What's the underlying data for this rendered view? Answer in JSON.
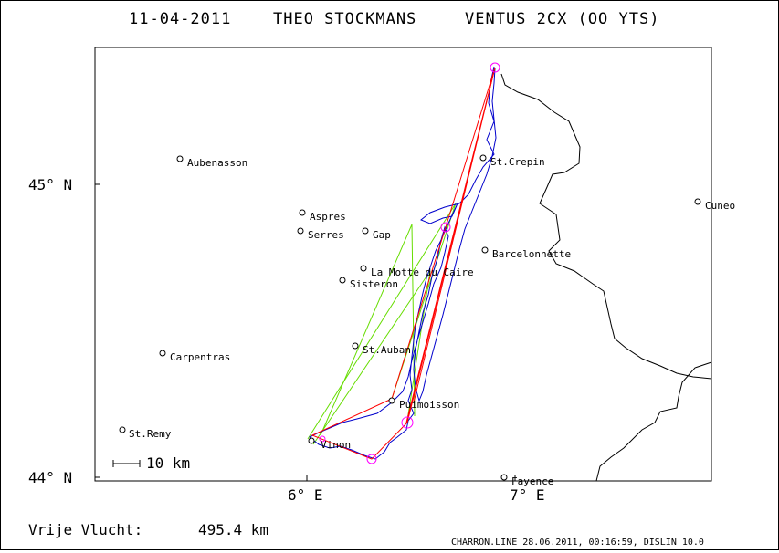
{
  "header": {
    "date": "11-04-2011",
    "pilot": "THEO STOCKMANS",
    "glider": "VENTUS 2CX (OO YTS)"
  },
  "axes": {
    "lat_labels": [
      "45° N",
      "44° N"
    ],
    "lon_labels": [
      "6° E",
      "7° E"
    ]
  },
  "scale_bar": {
    "label": "10 km"
  },
  "towns": [
    {
      "name": "Aubenasson"
    },
    {
      "name": "Aspres"
    },
    {
      "name": "Serres"
    },
    {
      "name": "Gap"
    },
    {
      "name": "St.Crepin"
    },
    {
      "name": "Cuneo"
    },
    {
      "name": "Barcelonnette"
    },
    {
      "name": "La Motte du Caire"
    },
    {
      "name": "Sisteron"
    },
    {
      "name": "St.Auban"
    },
    {
      "name": "Carpentras"
    },
    {
      "name": "Puimoisson"
    },
    {
      "name": "St.Remy"
    },
    {
      "name": "Vinon"
    },
    {
      "name": "Fayence"
    }
  ],
  "distance": {
    "label": "Vrije Vlucht:",
    "value": "495.4 km"
  },
  "footer": {
    "text": "CHARRON.LINE 28.06.2011, 00:16:59, DISLIN 10.0"
  },
  "colors": {
    "track": "#0000cc",
    "task_line": "#ff0000",
    "alt_line": "#66dd00",
    "turnpoint": "#ff00ff",
    "border": "#000000"
  }
}
